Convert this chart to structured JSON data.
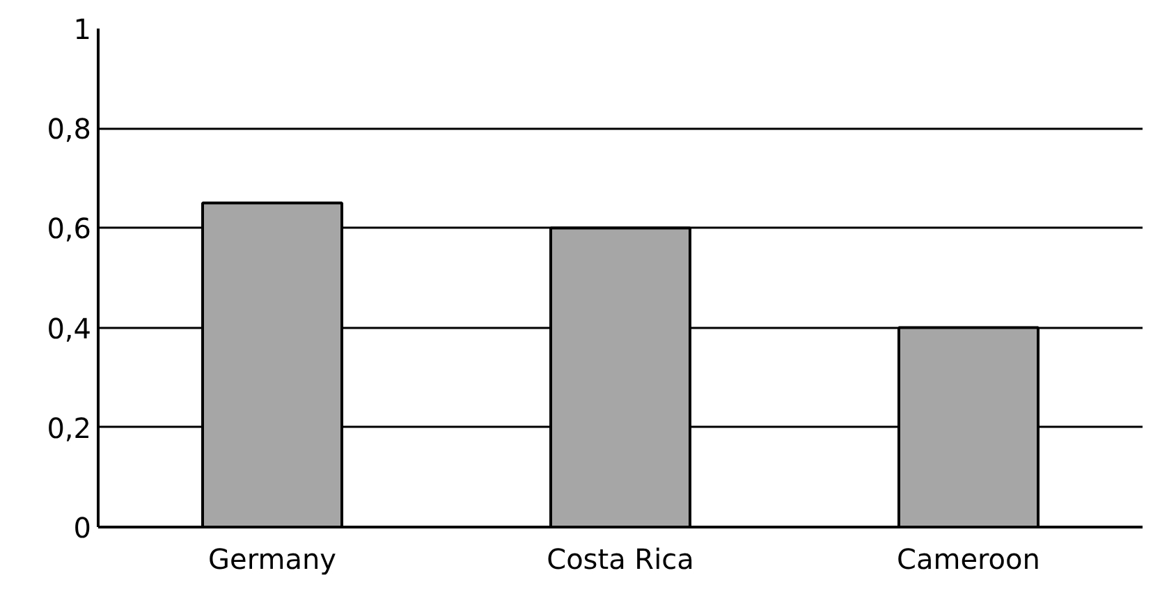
{
  "chart_data": {
    "type": "bar",
    "categories": [
      "Germany",
      "Costa Rica",
      "Cameroon"
    ],
    "values": [
      0.65,
      0.6,
      0.4
    ],
    "color": "#a6a6a6",
    "ylim": [
      0,
      1
    ],
    "yticks": [
      0,
      {
        "value": 0.2,
        "label": "0,2"
      },
      {
        "value": 0.4,
        "label": "0,4"
      },
      {
        "value": 0.6,
        "label": "0,6"
      },
      {
        "value": 0.8,
        "label": "0,8"
      },
      1
    ],
    "grid": "y"
  }
}
